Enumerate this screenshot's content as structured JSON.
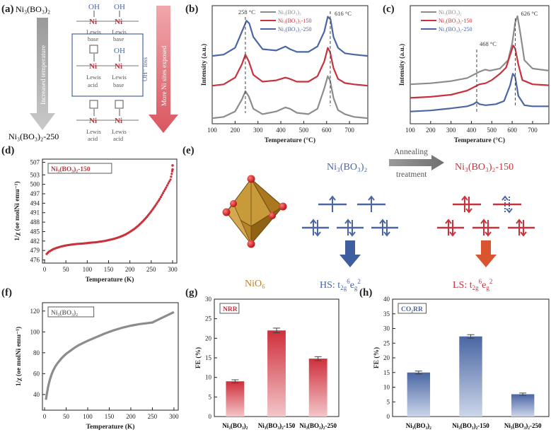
{
  "colors": {
    "gray": "#8c8c8c",
    "red": "#c8323c",
    "blue": "#4a66a3",
    "arrow_gray": "#b0b0b0",
    "arrow_red": "#e0747c",
    "oct": "#b7862e",
    "ox": "#d42020"
  },
  "panel_a": {
    "label": "(a)",
    "top": "Ni₃(BO₃)₂",
    "bottom": "Ni₃(BO₃)₂-250",
    "left_arrow": "Increased temperature",
    "right_arrow": "More Ni sites exposed",
    "oh_loss": "OH⁻ loss",
    "oh": "OH",
    "ni": "Ni",
    "lewis": "Lewis",
    "base": "base",
    "acid": "acid"
  },
  "chart_data": [
    {
      "id": "b",
      "type": "line",
      "label": "(b)",
      "xlabel": "Temperature (°C)",
      "ylabel": "Intensity (a.u.)",
      "xlim": [
        100,
        780
      ],
      "xticks": [
        100,
        200,
        300,
        400,
        500,
        600,
        700
      ],
      "legend": [
        "Ni₃(BO₃)₂",
        "Ni₃(BO₃)₂-150",
        "Ni₃(BO₃)₂-250"
      ],
      "annotations": [
        "258 °C",
        "616 °C"
      ],
      "series": [
        {
          "name": "Ni₃(BO₃)₂",
          "color": "gray",
          "offset": 0,
          "x": [
            100,
            150,
            200,
            230,
            245,
            260,
            280,
            320,
            380,
            420,
            440,
            470,
            520,
            560,
            590,
            605,
            615,
            630,
            650,
            680,
            720,
            780
          ],
          "values": [
            0.2,
            0.3,
            0.7,
            1.6,
            2.2,
            1.8,
            0.9,
            0.5,
            0.7,
            1.0,
            0.9,
            0.6,
            0.5,
            0.9,
            2.4,
            3.3,
            3.0,
            1.7,
            0.8,
            0.5,
            0.3,
            0.2
          ]
        },
        {
          "name": "Ni₃(BO₃)₂-150",
          "color": "red",
          "offset": 2.4,
          "x": [
            100,
            150,
            200,
            230,
            245,
            260,
            280,
            320,
            380,
            420,
            440,
            470,
            520,
            560,
            590,
            605,
            615,
            630,
            650,
            680,
            720,
            780
          ],
          "values": [
            0.2,
            0.3,
            0.8,
            1.8,
            2.5,
            2.0,
            1.0,
            0.5,
            0.6,
            0.8,
            0.7,
            0.5,
            0.5,
            0.9,
            2.0,
            3.0,
            2.7,
            1.5,
            0.7,
            0.4,
            0.3,
            0.2
          ]
        },
        {
          "name": "Ni₃(BO₃)₂-250",
          "color": "blue",
          "offset": 4.6,
          "x": [
            100,
            150,
            200,
            230,
            250,
            262,
            280,
            320,
            380,
            420,
            440,
            470,
            520,
            560,
            590,
            605,
            617,
            630,
            650,
            680,
            720,
            780
          ],
          "values": [
            0.2,
            0.3,
            0.8,
            2.0,
            2.8,
            2.6,
            1.6,
            0.7,
            0.6,
            0.9,
            0.7,
            0.5,
            0.5,
            0.9,
            2.0,
            3.1,
            2.9,
            1.6,
            0.8,
            0.4,
            0.3,
            0.2
          ]
        }
      ]
    },
    {
      "id": "c",
      "type": "line",
      "label": "(c)",
      "xlabel": "Temperature (°C)",
      "ylabel": "Intensity (a.u.)",
      "xlim": [
        100,
        780
      ],
      "xticks": [
        100,
        200,
        300,
        400,
        500,
        600,
        700
      ],
      "legend": [
        "Ni₃(BO₃)₂",
        "Ni₃(BO₃)₂-150",
        "Ni₃(BO₃)₂-250"
      ],
      "annotations": [
        "468 °C",
        "626 °C"
      ],
      "series": [
        {
          "name": "Ni₃(BO₃)₂",
          "color": "gray",
          "offset": 3.2,
          "x": [
            100,
            200,
            300,
            380,
            440,
            468,
            490,
            540,
            580,
            600,
            615,
            626,
            640,
            660,
            700,
            780
          ],
          "values": [
            0.3,
            0.4,
            0.6,
            0.9,
            1.5,
            1.7,
            1.6,
            1.8,
            2.6,
            4.2,
            6.2,
            6.8,
            5.2,
            2.6,
            1.8,
            1.6
          ]
        },
        {
          "name": "Ni₃(BO₃)₂-150",
          "color": "red",
          "offset": 1.9,
          "x": [
            100,
            200,
            300,
            380,
            420,
            440,
            470,
            500,
            540,
            570,
            590,
            605,
            615,
            630,
            650,
            700,
            780
          ],
          "values": [
            0.3,
            0.4,
            0.6,
            1.0,
            1.4,
            1.6,
            1.7,
            2.0,
            2.6,
            3.2,
            4.4,
            5.3,
            5.0,
            3.5,
            2.0,
            1.6,
            1.5
          ]
        },
        {
          "name": "Ni₃(BO₃)₂-250",
          "color": "blue",
          "offset": 0.6,
          "x": [
            100,
            200,
            300,
            380,
            410,
            425,
            440,
            470,
            520,
            560,
            590,
            603,
            615,
            630,
            660,
            700,
            780
          ],
          "values": [
            0.3,
            0.4,
            0.6,
            0.8,
            1.0,
            1.2,
            1.0,
            0.9,
            1.0,
            1.3,
            2.8,
            3.9,
            3.6,
            1.8,
            0.9,
            0.8,
            0.8
          ]
        }
      ]
    },
    {
      "id": "d",
      "type": "scatter",
      "label": "(d)",
      "box_label": "Ni₃(BO₃)₂-150",
      "xlabel": "Temperature (K)",
      "ylabel": "1/χ (oe molNi emu⁻¹)",
      "xlim": [
        -5,
        310
      ],
      "ylim": [
        475,
        508
      ],
      "xticks": [
        0,
        50,
        100,
        150,
        200,
        250,
        300
      ],
      "yticks": [
        476,
        479,
        482,
        485,
        488,
        491,
        494,
        497,
        500,
        503,
        507
      ],
      "x": [
        5,
        10,
        20,
        30,
        40,
        50,
        60,
        70,
        80,
        90,
        100,
        110,
        120,
        130,
        140,
        150,
        160,
        170,
        180,
        190,
        200,
        210,
        220,
        230,
        240,
        250,
        260,
        270,
        280,
        285,
        290,
        295,
        298,
        300
      ],
      "values": [
        477.9,
        478.6,
        479.4,
        479.9,
        480.3,
        480.6,
        480.8,
        481.0,
        481.1,
        481.2,
        481.35,
        481.5,
        481.6,
        481.8,
        482.0,
        482.3,
        482.6,
        483.0,
        483.5,
        484.1,
        484.9,
        485.8,
        486.9,
        488.2,
        489.7,
        491.4,
        493.3,
        495.4,
        497.8,
        499.0,
        500.3,
        501.5,
        503.3,
        505.0
      ]
    },
    {
      "id": "f",
      "type": "line",
      "label": "(f)",
      "box_label": "Ni₃(BO₃)₂",
      "xlabel": "Temperature (K)",
      "ylabel": "1/χ (oe molNi emu⁻¹)",
      "xlim": [
        -5,
        310
      ],
      "ylim": [
        25,
        128
      ],
      "xticks": [
        0,
        50,
        100,
        150,
        200,
        250,
        300
      ],
      "yticks": [
        40,
        60,
        80,
        100,
        120
      ],
      "x": [
        3,
        5,
        8,
        12,
        16,
        20,
        25,
        30,
        40,
        50,
        60,
        70,
        80,
        90,
        100,
        120,
        140,
        160,
        180,
        200,
        220,
        240,
        250,
        260,
        270,
        280,
        290,
        300
      ],
      "values": [
        35,
        40,
        47,
        54,
        59,
        63,
        67,
        70,
        75,
        79,
        82,
        85,
        87.5,
        89.5,
        91.5,
        95,
        98.5,
        101.5,
        104,
        106,
        107.5,
        108.5,
        109,
        111,
        113,
        115,
        117,
        119
      ]
    },
    {
      "id": "g",
      "type": "bar",
      "label": "(g)",
      "box_label": "NRR",
      "ylabel": "FE (%)",
      "ylim": [
        0,
        30
      ],
      "yticks": [
        0,
        5,
        10,
        15,
        20,
        25,
        30
      ],
      "categories": [
        "Ni₃(BO₃)₂",
        "Ni₃(BO₃)₂-150",
        "Ni₃(BO₃)₂-250"
      ],
      "values": [
        9.0,
        22.0,
        14.8
      ],
      "errors": [
        0.4,
        0.6,
        0.5
      ]
    },
    {
      "id": "h",
      "type": "bar",
      "label": "(h)",
      "box_label": "CO₂RR",
      "ylabel": "FE (%)",
      "ylim": [
        0,
        40
      ],
      "yticks": [
        0,
        5,
        10,
        15,
        20,
        25,
        30,
        35,
        40
      ],
      "categories": [
        "Ni₃(BO₃)₂",
        "Ni₃(BO₃)₂-150",
        "Ni₃(BO₃)₂-250"
      ],
      "values": [
        15.0,
        27.3,
        7.6
      ],
      "errors": [
        0.5,
        0.6,
        0.4
      ]
    }
  ],
  "panel_e": {
    "label": "(e)",
    "left_title": "Ni₃(BO₃)₂",
    "right_title": "Ni₃(BO₃)₂-150",
    "annealing_top": "Annealing",
    "annealing_bottom": "treatment",
    "nio6": "NiO₆",
    "hs_prefix": "HS: t",
    "hs_sub1": "2g",
    "hs_sup1": "6",
    "hs_mid": "e",
    "hs_sub2": "g",
    "hs_sup2": "2",
    "ls_prefix": "LS: t",
    "ls_sub1": "2g",
    "ls_sup1": "6",
    "ls_mid": "e",
    "ls_sub2": "g",
    "ls_sup2": "2"
  }
}
